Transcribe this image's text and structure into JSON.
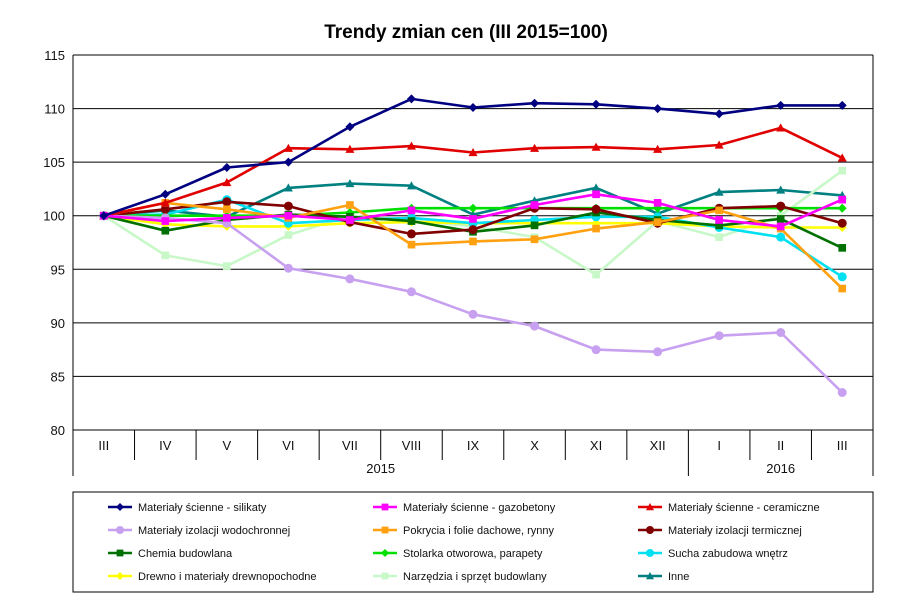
{
  "chart_data": {
    "type": "line",
    "title": "Trendy zmian cen (III 2015=100)",
    "categories": [
      "III",
      "IV",
      "V",
      "VI",
      "VII",
      "VIII",
      "IX",
      "X",
      "XI",
      "XII",
      "I",
      "II",
      "III"
    ],
    "year_groups": [
      {
        "label": "2015",
        "from": 0,
        "to": 9
      },
      {
        "label": "2016",
        "from": 10,
        "to": 12
      }
    ],
    "ylim": [
      80,
      115
    ],
    "yticks": [
      80,
      85,
      90,
      95,
      100,
      105,
      110,
      115
    ],
    "grid": "horizontal",
    "legend_position": "bottom",
    "series": [
      {
        "name": "Materiały ścienne - silikaty",
        "color": "#000080",
        "marker": "diamond",
        "values": [
          100,
          102.0,
          104.5,
          105.0,
          108.3,
          110.9,
          110.1,
          110.5,
          110.4,
          110.0,
          109.5,
          110.3,
          110.3
        ]
      },
      {
        "name": "Materiały ścienne - gazobetony",
        "color": "#ff00ff",
        "marker": "square",
        "values": [
          100,
          99.5,
          99.8,
          100.0,
          99.6,
          100.5,
          99.7,
          101.0,
          102.0,
          101.2,
          99.6,
          99.0,
          101.5
        ]
      },
      {
        "name": "Materiały ścienne - ceramiczne",
        "color": "#e00000",
        "marker": "triangle",
        "values": [
          100,
          101.2,
          103.1,
          106.3,
          106.2,
          106.5,
          105.9,
          106.3,
          106.4,
          106.2,
          106.6,
          108.2,
          105.4
        ]
      },
      {
        "name": "Materiały izolacji wodochronnej",
        "color": "#c8a0f0",
        "marker": "circle",
        "values": [
          100,
          99.8,
          99.3,
          95.1,
          94.1,
          92.9,
          90.8,
          89.7,
          87.5,
          87.3,
          88.8,
          89.1,
          83.5
        ]
      },
      {
        "name": "Pokrycia i folie dachowe, rynny",
        "color": "#ffa010",
        "marker": "square",
        "values": [
          100,
          101.2,
          100.6,
          99.8,
          101.0,
          97.3,
          97.6,
          97.8,
          98.8,
          99.4,
          100.5,
          98.8,
          93.2
        ]
      },
      {
        "name": "Materiały izolacji termicznej",
        "color": "#800000",
        "marker": "circle",
        "values": [
          100,
          100.6,
          101.3,
          100.9,
          99.4,
          98.3,
          98.7,
          100.7,
          100.6,
          99.3,
          100.7,
          100.9,
          99.3
        ]
      },
      {
        "name": "Chemia budowlana",
        "color": "#007000",
        "marker": "square",
        "values": [
          100,
          98.6,
          99.6,
          100.1,
          99.9,
          99.5,
          98.5,
          99.1,
          100.3,
          99.6,
          99.1,
          99.7,
          97.0
        ]
      },
      {
        "name": "Stolarka otworowa, parapety",
        "color": "#00e000",
        "marker": "diamond",
        "values": [
          100,
          100.0,
          100.0,
          100.0,
          100.3,
          100.7,
          100.7,
          100.7,
          100.7,
          100.7,
          100.7,
          100.7,
          100.7
        ]
      },
      {
        "name": "Sucha zabudowa wnętrz",
        "color": "#00e0f0",
        "marker": "circle",
        "values": [
          100,
          100.1,
          101.5,
          99.3,
          99.6,
          99.8,
          99.3,
          99.6,
          99.9,
          99.9,
          98.9,
          98.0,
          94.3
        ]
      },
      {
        "name": "Drewno i materiały drewnopochodne",
        "color": "#ffff00",
        "marker": "diamond",
        "values": [
          100,
          99.2,
          99.0,
          99.0,
          99.3,
          99.4,
          99.3,
          99.3,
          99.3,
          99.3,
          99.0,
          98.9,
          98.9
        ]
      },
      {
        "name": "Narzędzia i sprzęt budowlany",
        "color": "#c8f8c8",
        "marker": "square",
        "values": [
          100,
          96.3,
          95.3,
          98.2,
          100.0,
          99.6,
          99.0,
          98.0,
          94.5,
          99.5,
          98.0,
          100.0,
          104.2
        ]
      },
      {
        "name": "Inne",
        "color": "#008080",
        "marker": "triangle",
        "values": [
          100,
          100.5,
          99.9,
          102.6,
          103.0,
          102.8,
          100.1,
          101.4,
          102.6,
          100.2,
          102.2,
          102.4,
          101.9
        ]
      }
    ]
  }
}
